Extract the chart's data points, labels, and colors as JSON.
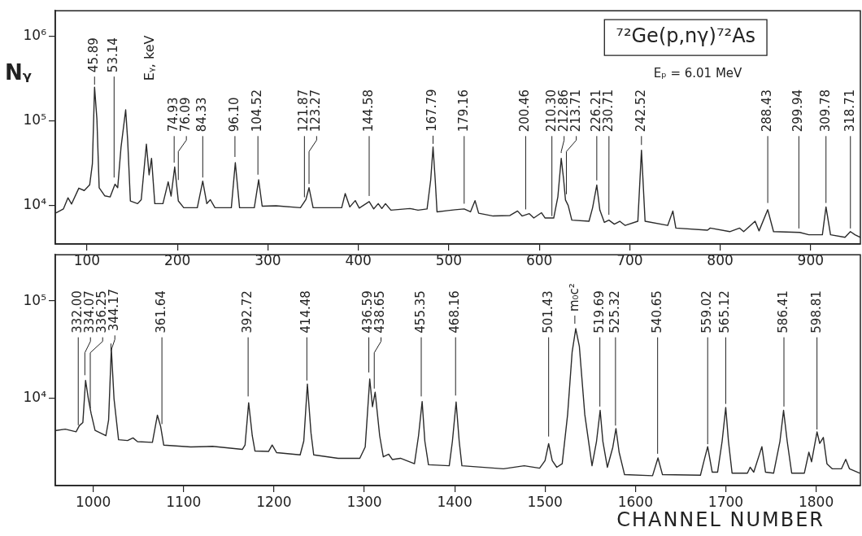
{
  "chart_data": [
    {
      "type": "line",
      "title": "⁷²Ge(p,nγ)⁷²As",
      "subtitle": "Eₚ = 6.01 MeV",
      "ylabel": "Nᵧ",
      "log": "y",
      "marker": "none",
      "line_style": "solid",
      "xlim": [
        65,
        955
      ],
      "xticks": [
        100,
        200,
        300,
        400,
        500,
        600,
        700,
        800,
        900
      ],
      "ylim": [
        3500,
        2000000
      ],
      "yticks": [
        {
          "value": 10000,
          "label": "10⁴"
        },
        {
          "value": 100000,
          "label": "10⁵"
        },
        {
          "value": 1000000,
          "label": "10⁶"
        }
      ],
      "series": [
        {
          "color": "#2a2a2a",
          "x": [
            66,
            74,
            79,
            83,
            91,
            97,
            103,
            106,
            108.4,
            111,
            113.5,
            119.6,
            125.6,
            131,
            134,
            137.6,
            142.8,
            145,
            148,
            156,
            160,
            165.7,
            168.7,
            171.4,
            175,
            184,
            189.8,
            193,
            197,
            201,
            207,
            222,
            228,
            232.5,
            236.4,
            241.5,
            259.6,
            264,
            268.7,
            285,
            289.8,
            293.7,
            309,
            336,
            342,
            345.5,
            350,
            381.6,
            385.5,
            390.6,
            396.6,
            401,
            412,
            417,
            422,
            426,
            430,
            436,
            457,
            466,
            476,
            480,
            482.6,
            485,
            487,
            499,
            507,
            517,
            524,
            529,
            533,
            549,
            567.6,
            576,
            581,
            589,
            594,
            602.5,
            606.5,
            616,
            620.6,
            624.3,
            627,
            629,
            632,
            636,
            655,
            659,
            663.6,
            667,
            672,
            677,
            683,
            689,
            695,
            709,
            713,
            717,
            742,
            747.7,
            751,
            786,
            789,
            810.6,
            821.5,
            826,
            838.6,
            843,
            852.6,
            859,
            888,
            898,
            913,
            917,
            922,
            938,
            944,
            949,
            955
          ],
          "values": [
            8200,
            9100,
            12300,
            10400,
            16000,
            15000,
            17500,
            31000,
            250000,
            105000,
            16200,
            13000,
            12600,
            17800,
            16200,
            48000,
            135000,
            59000,
            11300,
            10500,
            11700,
            53000,
            23000,
            36000,
            10500,
            10500,
            19000,
            12900,
            28500,
            11300,
            9400,
            9400,
            19400,
            10500,
            11700,
            9400,
            9400,
            32000,
            9400,
            9400,
            20100,
            9800,
            9900,
            9400,
            11700,
            16200,
            9400,
            9400,
            13800,
            9600,
            11400,
            9300,
            11100,
            9100,
            10500,
            9200,
            10500,
            8800,
            9200,
            8800,
            9100,
            20000,
            49000,
            20000,
            8400,
            8700,
            8900,
            9100,
            8400,
            11400,
            8100,
            7500,
            7600,
            8600,
            7500,
            8000,
            7100,
            8200,
            7100,
            7100,
            12700,
            36000,
            20000,
            11600,
            10000,
            6700,
            6500,
            9400,
            17400,
            8800,
            6300,
            6700,
            6000,
            6500,
            5800,
            6500,
            45000,
            6500,
            5800,
            8600,
            5400,
            5100,
            5400,
            4900,
            5400,
            4900,
            6500,
            5000,
            8900,
            4900,
            4800,
            4500,
            4500,
            9600,
            4500,
            4200,
            4900,
            4500,
            4200
          ]
        }
      ],
      "annotations": [
        "Eᵧ, keV",
        {
          "text": "45.89",
          "x": 108.4,
          "y": 250000
        },
        {
          "text": "53.14",
          "x": 130,
          "y": 20000
        },
        {
          "text": "74.93",
          "x": 196.4,
          "y": 30000
        },
        {
          "text": "76.09",
          "x": 201,
          "y": 18700
        },
        {
          "text": "84.33",
          "x": 228,
          "y": 20000
        },
        {
          "text": "96.10",
          "x": 263.6,
          "y": 35000
        },
        {
          "text": "104.52",
          "x": 289,
          "y": 21600
        },
        {
          "text": "121.87",
          "x": 340.4,
          "y": 11700
        },
        {
          "text": "123.27",
          "x": 345.5,
          "y": 16800
        },
        {
          "text": "144.58",
          "x": 412,
          "y": 12100
        },
        {
          "text": "167.79",
          "x": 482.6,
          "y": 50000
        },
        {
          "text": "179.16",
          "x": 517,
          "y": 9800
        },
        {
          "text": "200.46",
          "x": 585,
          "y": 8400
        },
        {
          "text": "210.30",
          "x": 614,
          "y": 7000
        },
        {
          "text": "212.86",
          "x": 624.3,
          "y": 39000
        },
        {
          "text": "213.71",
          "x": 630,
          "y": 12700
        },
        {
          "text": "226.21",
          "x": 663.6,
          "y": 18500
        },
        {
          "text": "230.71",
          "x": 677,
          "y": 7250
        },
        {
          "text": "242.52",
          "x": 713,
          "y": 48500
        },
        {
          "text": "288.43",
          "x": 852.6,
          "y": 10000
        },
        {
          "text": "299.94",
          "x": 887,
          "y": 5000
        },
        {
          "text": "309.78",
          "x": 917,
          "y": 10000
        },
        {
          "text": "318.71",
          "x": 944,
          "y": 5000
        }
      ]
    },
    {
      "type": "line",
      "xlabel": "CHANNEL NUMBER",
      "log": "y",
      "marker": "none",
      "line_style": "solid",
      "xlim": [
        958,
        1849
      ],
      "xticks": [
        1000,
        1100,
        1200,
        1300,
        1400,
        1500,
        1600,
        1700,
        1800
      ],
      "ylim": [
        1250,
        300000
      ],
      "yticks": [
        {
          "value": 10000,
          "label": "10⁴"
        },
        {
          "value": 100000,
          "label": "10⁵"
        }
      ],
      "series": [
        {
          "color": "#2a2a2a",
          "x": [
            959,
            969,
            981,
            984.6,
            988.5,
            991.5,
            994.6,
            997.6,
            1002,
            1014,
            1017,
            1020,
            1023,
            1028,
            1038,
            1044,
            1049,
            1065.5,
            1071,
            1074.6,
            1078,
            1108,
            1132,
            1165,
            1168,
            1172,
            1176,
            1179,
            1194,
            1198,
            1203,
            1229,
            1233,
            1237,
            1241,
            1244,
            1271,
            1295,
            1301,
            1306,
            1309,
            1312,
            1317,
            1321,
            1327,
            1331,
            1340,
            1355.5,
            1360,
            1364,
            1367,
            1371,
            1394,
            1397.5,
            1401.6,
            1405,
            1408,
            1454,
            1477,
            1494,
            1500,
            1504,
            1508,
            1513,
            1519,
            1525,
            1530,
            1534,
            1538,
            1544,
            1552,
            1557,
            1561,
            1564,
            1569,
            1575,
            1578.5,
            1582,
            1588,
            1619,
            1625,
            1630,
            1672,
            1676,
            1680,
            1685,
            1691,
            1696,
            1700,
            1703,
            1707,
            1724,
            1727,
            1731,
            1740,
            1744,
            1753,
            1760,
            1764,
            1768,
            1773,
            1787,
            1792,
            1795,
            1801,
            1804,
            1808,
            1812,
            1818,
            1828,
            1832.8,
            1837,
            1848
          ],
          "values": [
            4630,
            4770,
            4480,
            5180,
            5580,
            15200,
            9800,
            6950,
            4630,
            4080,
            5940,
            32400,
            9800,
            3710,
            3640,
            3880,
            3550,
            3490,
            6650,
            5080,
            3270,
            3130,
            3170,
            2950,
            3270,
            8940,
            4080,
            2840,
            2810,
            3270,
            2730,
            2590,
            3600,
            13900,
            4350,
            2590,
            2390,
            2390,
            3130,
            15700,
            8130,
            11500,
            4080,
            2470,
            2630,
            2320,
            2390,
            2100,
            4080,
            9200,
            3580,
            2050,
            2000,
            3580,
            9100,
            3580,
            2000,
            1860,
            2000,
            1890,
            2260,
            3380,
            2260,
            1930,
            2100,
            6750,
            29800,
            51900,
            34000,
            6750,
            2000,
            3580,
            7450,
            3580,
            1930,
            3100,
            4840,
            2760,
            1620,
            1580,
            2410,
            1620,
            1600,
            2260,
            3150,
            1720,
            1720,
            3580,
            7980,
            3580,
            1680,
            1680,
            1930,
            1720,
            3150,
            1720,
            1680,
            3580,
            7450,
            3580,
            1680,
            1680,
            2760,
            2200,
            4470,
            3400,
            3920,
            2100,
            1860,
            1860,
            2330,
            1860,
            1680
          ]
        }
      ],
      "annotations": [
        {
          "text": "332.00",
          "x": 983.4,
          "y": 4950
        },
        {
          "text": "334.07",
          "x": 990.7,
          "y": 16200
        },
        {
          "text": "336.25",
          "x": 996.7,
          "y": 7400
        },
        {
          "text": "344.17",
          "x": 1019.6,
          "y": 34400
        },
        {
          "text": "361.64",
          "x": 1076,
          "y": 5080
        },
        {
          "text": "392.72",
          "x": 1171.4,
          "y": 9800
        },
        {
          "text": "414.48",
          "x": 1236.4,
          "y": 14300
        },
        {
          "text": "436.59",
          "x": 1305,
          "y": 17300
        },
        {
          "text": "438.65",
          "x": 1311,
          "y": 11800
        },
        {
          "text": "455.35",
          "x": 1363,
          "y": 9800
        },
        {
          "text": "468.16",
          "x": 1401,
          "y": 10000
        },
        {
          "text": "501.43",
          "x": 1504,
          "y": 3780
        },
        {
          "text": "m₀c²",
          "x": 1533,
          "y": 55000
        },
        {
          "text": "519.69",
          "x": 1560.7,
          "y": 7700
        },
        {
          "text": "525.32",
          "x": 1578,
          "y": 4900
        },
        {
          "text": "540.65",
          "x": 1624.6,
          "y": 2510
        },
        {
          "text": "559.02",
          "x": 1680,
          "y": 3150
        },
        {
          "text": "565.12",
          "x": 1700,
          "y": 8200
        },
        {
          "text": "586.41",
          "x": 1764.4,
          "y": 7700
        },
        {
          "text": "598.81",
          "x": 1801,
          "y": 4470
        }
      ]
    }
  ]
}
